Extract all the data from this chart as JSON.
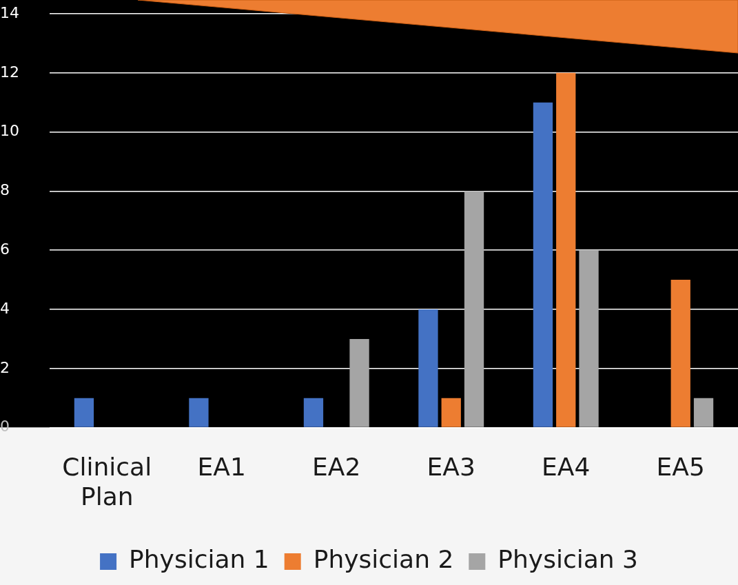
{
  "chart_data": {
    "type": "bar",
    "categories": [
      "Clinical Plan",
      "EA1",
      "EA2",
      "EA3",
      "EA4",
      "EA5"
    ],
    "series": [
      {
        "name": "Physician 1",
        "color": "#4472c4",
        "values": [
          1,
          1,
          1,
          4,
          11,
          0
        ]
      },
      {
        "name": "Physician 2",
        "color": "#ed7d31",
        "values": [
          0,
          0,
          0,
          1,
          12,
          5
        ]
      },
      {
        "name": "Physician 3",
        "color": "#a5a5a5",
        "values": [
          0,
          0,
          3,
          8,
          6,
          1
        ]
      }
    ],
    "ylim": [
      0,
      14
    ],
    "yticks": [
      0,
      2,
      4,
      6,
      8,
      10,
      12,
      14
    ],
    "grid": "y",
    "legend": "bottom"
  }
}
